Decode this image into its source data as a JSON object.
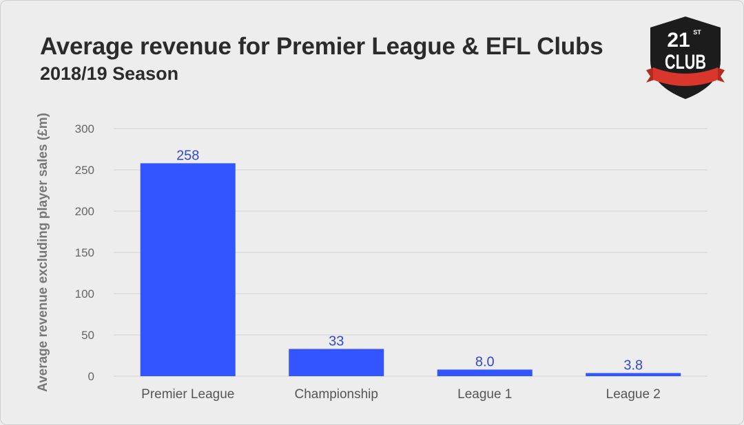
{
  "header": {
    "title": "Average revenue for Premier League & EFL Clubs",
    "subtitle": "2018/19 Season"
  },
  "logo": {
    "name": "21st Club",
    "number": "21",
    "superscript": "ST",
    "word": "CLUB",
    "colors": {
      "shield": "#1c1c1c",
      "ribbon": "#d9372b",
      "text": "#ffffff"
    }
  },
  "colors": {
    "bar": "#3355ff",
    "data_label": "#3347d6",
    "background": "#ededed"
  },
  "chart_data": {
    "type": "bar",
    "title": "Average revenue for Premier League & EFL Clubs",
    "subtitle": "2018/19 Season",
    "xlabel": "",
    "ylabel": "Average revenue excluding player sales (£m)",
    "categories": [
      "Premier League",
      "Championship",
      "League 1",
      "League 2"
    ],
    "values": [
      258,
      33,
      8.0,
      3.8
    ],
    "value_labels": [
      "258",
      "33",
      "8.0",
      "3.8"
    ],
    "ylim": [
      0,
      300
    ],
    "yticks": [
      0,
      50,
      100,
      150,
      200,
      250,
      300
    ],
    "grid": true,
    "legend": "none"
  }
}
